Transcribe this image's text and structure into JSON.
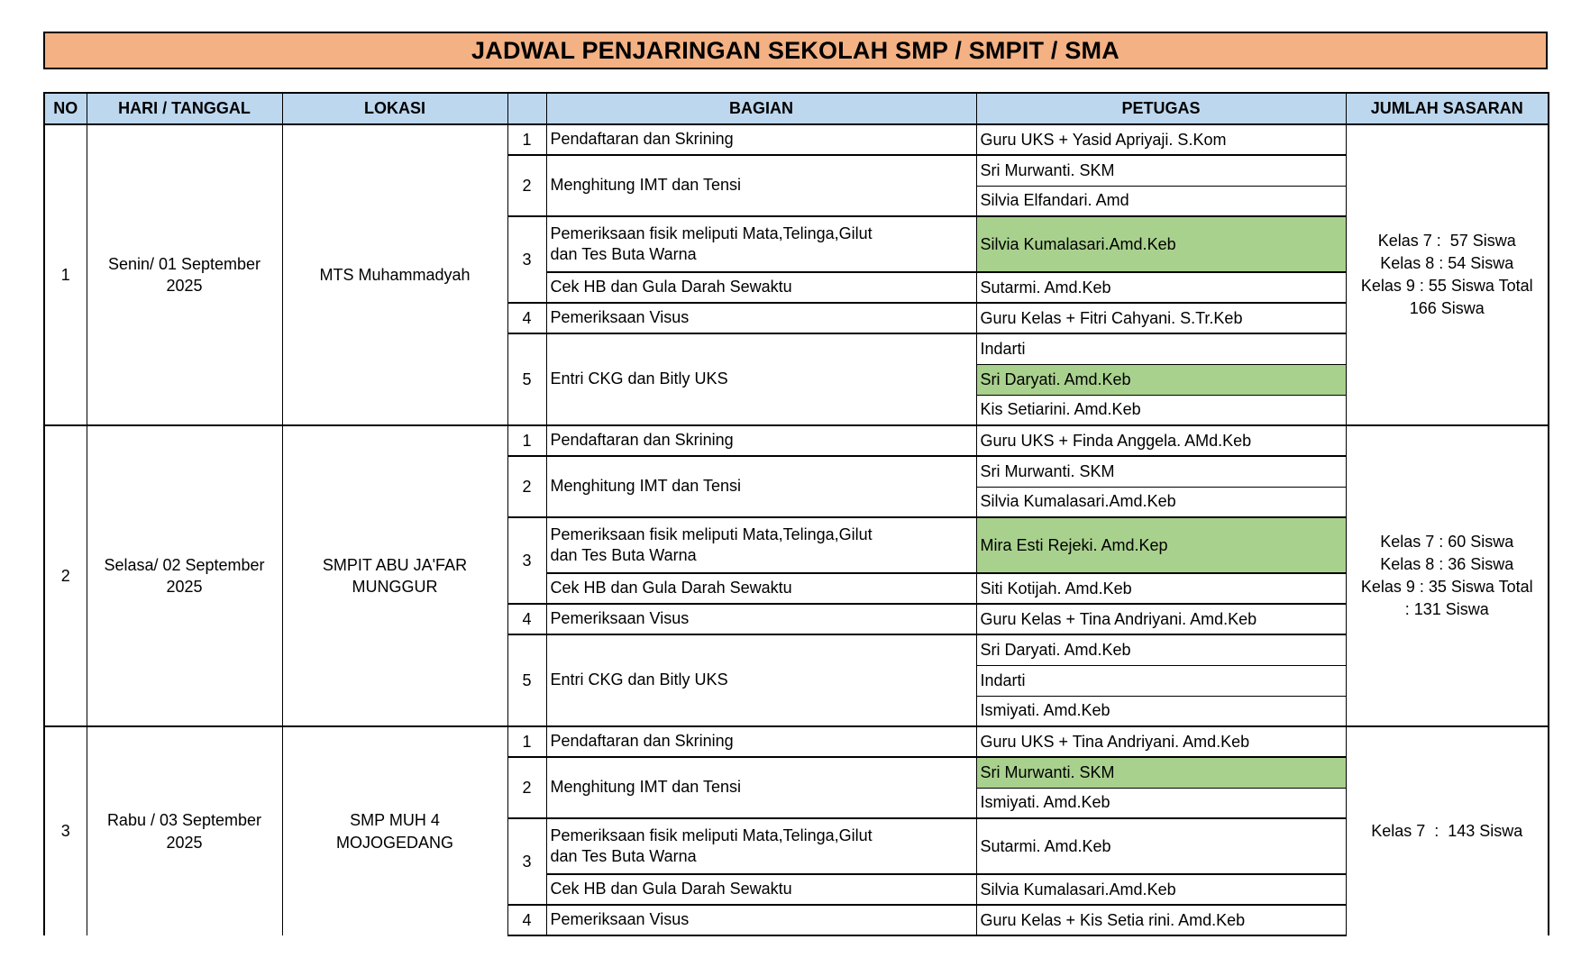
{
  "title": "JADWAL PENJARINGAN SEKOLAH SMP / SMPIT / SMA",
  "colors": {
    "title_bg": "#F4B183",
    "header_bg": "#BDD7EE",
    "highlight_green": "#A9D18E",
    "border": "#000000"
  },
  "columns": [
    {
      "id": "no",
      "label": "NO"
    },
    {
      "id": "hari-tanggal",
      "label": "HARI / TANGGAL"
    },
    {
      "id": "lokasi",
      "label": "LOKASI"
    },
    {
      "id": "sub-no",
      "label": ""
    },
    {
      "id": "bagian",
      "label": "BAGIAN"
    },
    {
      "id": "petugas",
      "label": "PETUGAS"
    },
    {
      "id": "jumlah-sasaran",
      "label": "JUMLAH SASARAN"
    }
  ],
  "groups": [
    {
      "no": "1",
      "hari_tanggal": "Senin/ 01 September\n2025",
      "lokasi": "MTS Muhammadyah",
      "jumlah_sasaran": "Kelas 7 :  57 Siswa\nKelas 8 : 54 Siswa\nKelas 9 : 55 Siswa Total\n166 Siswa",
      "cut": false,
      "sections": [
        {
          "num": "1",
          "rows": [
            {
              "bagian": "Pendaftaran dan Skrining",
              "petugas": [
                {
                  "name": "Guru UKS + Yasid Apriyaji. S.Kom",
                  "green": false
                }
              ]
            }
          ]
        },
        {
          "num": "2",
          "rows": [
            {
              "bagian": "Menghitung IMT dan Tensi",
              "petugas": [
                {
                  "name": "Sri Murwanti. SKM",
                  "green": false
                },
                {
                  "name": "Silvia Elfandari. Amd",
                  "green": false
                }
              ]
            }
          ]
        },
        {
          "num": "3",
          "rows": [
            {
              "bagian": "Pemeriksaan fisik meliputi Mata,Telinga,Gilut\ndan Tes Buta Warna",
              "petugas": [
                {
                  "name": "Silvia Kumalasari.Amd.Keb",
                  "green": true
                }
              ]
            },
            {
              "bagian": "Cek HB dan Gula Darah Sewaktu",
              "petugas": [
                {
                  "name": "Sutarmi. Amd.Keb",
                  "green": false
                }
              ]
            }
          ]
        },
        {
          "num": "4",
          "rows": [
            {
              "bagian": "Pemeriksaan Visus",
              "petugas": [
                {
                  "name": "Guru Kelas + Fitri Cahyani. S.Tr.Keb",
                  "green": false
                }
              ]
            }
          ]
        },
        {
          "num": "5",
          "rows": [
            {
              "bagian": "Entri CKG dan Bitly UKS",
              "petugas": [
                {
                  "name": "Indarti",
                  "green": false
                },
                {
                  "name": "Sri Daryati. Amd.Keb",
                  "green": true
                },
                {
                  "name": "Kis Setiarini. Amd.Keb",
                  "green": false
                }
              ]
            }
          ]
        }
      ]
    },
    {
      "no": "2",
      "hari_tanggal": "Selasa/ 02 September\n2025",
      "lokasi": "SMPIT ABU JA'FAR\nMUNGGUR",
      "jumlah_sasaran": "Kelas 7 : 60 Siswa\nKelas 8 : 36 Siswa\nKelas 9 : 35 Siswa Total\n: 131 Siswa",
      "cut": false,
      "sections": [
        {
          "num": "1",
          "rows": [
            {
              "bagian": "Pendaftaran dan Skrining",
              "petugas": [
                {
                  "name": "Guru UKS + Finda Anggela. AMd.Keb",
                  "green": false
                }
              ]
            }
          ]
        },
        {
          "num": "2",
          "rows": [
            {
              "bagian": "Menghitung IMT dan Tensi",
              "petugas": [
                {
                  "name": "Sri Murwanti. SKM",
                  "green": false
                },
                {
                  "name": "Silvia Kumalasari.Amd.Keb",
                  "green": false
                }
              ]
            }
          ]
        },
        {
          "num": "3",
          "rows": [
            {
              "bagian": "Pemeriksaan fisik meliputi Mata,Telinga,Gilut\ndan Tes Buta Warna",
              "petugas": [
                {
                  "name": "Mira Esti Rejeki. Amd.Kep",
                  "green": true
                }
              ]
            },
            {
              "bagian": "Cek HB dan Gula Darah Sewaktu",
              "petugas": [
                {
                  "name": "Siti Kotijah. Amd.Keb",
                  "green": false
                }
              ]
            }
          ]
        },
        {
          "num": "4",
          "rows": [
            {
              "bagian": "Pemeriksaan Visus",
              "petugas": [
                {
                  "name": "Guru Kelas + Tina Andriyani. Amd.Keb",
                  "green": false
                }
              ]
            }
          ]
        },
        {
          "num": "5",
          "rows": [
            {
              "bagian": "Entri CKG dan Bitly UKS",
              "petugas": [
                {
                  "name": "Sri Daryati. Amd.Keb",
                  "green": false
                },
                {
                  "name": "Indarti",
                  "green": false
                },
                {
                  "name": "Ismiyati. Amd.Keb",
                  "green": false
                }
              ]
            }
          ]
        }
      ]
    },
    {
      "no": "3",
      "hari_tanggal": "Rabu / 03 September\n2025",
      "lokasi": "SMP MUH 4\nMOJOGEDANG",
      "jumlah_sasaran": "Kelas 7  :  143 Siswa",
      "cut": true,
      "sections": [
        {
          "num": "1",
          "rows": [
            {
              "bagian": "Pendaftaran dan Skrining",
              "petugas": [
                {
                  "name": "Guru UKS + Tina Andriyani. Amd.Keb",
                  "green": false
                }
              ]
            }
          ]
        },
        {
          "num": "2",
          "rows": [
            {
              "bagian": "Menghitung IMT dan Tensi",
              "petugas": [
                {
                  "name": "Sri Murwanti. SKM",
                  "green": true
                },
                {
                  "name": "Ismiyati. Amd.Keb",
                  "green": false
                }
              ]
            }
          ]
        },
        {
          "num": "3",
          "rows": [
            {
              "bagian": "Pemeriksaan fisik meliputi Mata,Telinga,Gilut\ndan Tes Buta Warna",
              "petugas": [
                {
                  "name": "Sutarmi. Amd.Keb",
                  "green": false
                }
              ]
            },
            {
              "bagian": "Cek HB dan Gula Darah Sewaktu",
              "petugas": [
                {
                  "name": "Silvia Kumalasari.Amd.Keb",
                  "green": false
                }
              ]
            }
          ]
        },
        {
          "num": "4",
          "rows": [
            {
              "bagian": "Pemeriksaan Visus",
              "petugas": [
                {
                  "name": "Guru Kelas + Kis Setia rini. Amd.Keb",
                  "green": false
                }
              ]
            }
          ]
        }
      ]
    }
  ]
}
